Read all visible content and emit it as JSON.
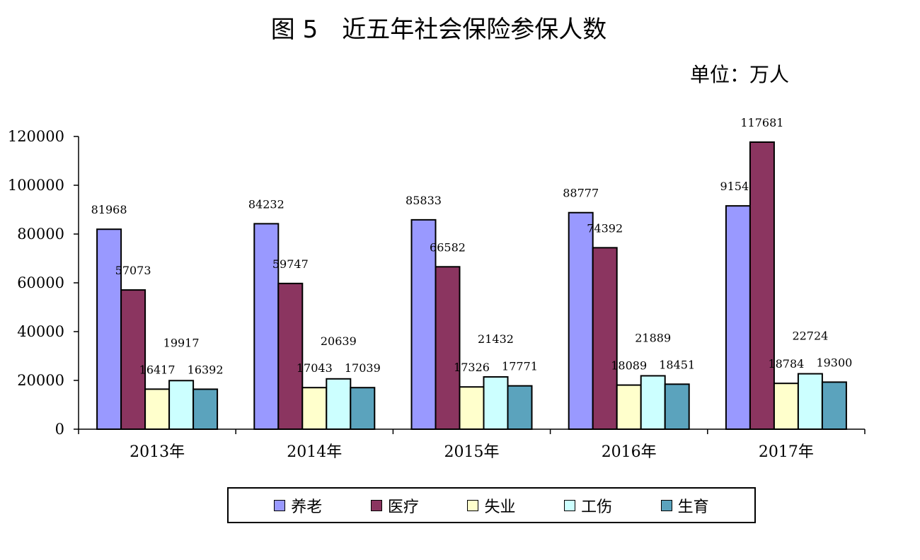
{
  "chart_data": {
    "type": "bar",
    "title": "图 5　近五年社会保险参保人数",
    "unit": "单位：万人",
    "categories": [
      "2013年",
      "2014年",
      "2015年",
      "2016年",
      "2017年"
    ],
    "series": [
      {
        "name": "养老",
        "color": "#9999ff",
        "values": [
          81968,
          84232,
          85833,
          88777,
          91548
        ]
      },
      {
        "name": "医疗",
        "color": "#8b3560",
        "values": [
          57073,
          59747,
          66582,
          74392,
          117681
        ]
      },
      {
        "name": "失业",
        "color": "#ffffcc",
        "values": [
          16417,
          17043,
          17326,
          18089,
          18784
        ]
      },
      {
        "name": "工伤",
        "color": "#ccffff",
        "values": [
          19917,
          20639,
          21432,
          21889,
          22724
        ]
      },
      {
        "name": "生育",
        "color": "#5ba3bd",
        "values": [
          16392,
          17039,
          17771,
          18451,
          19300
        ]
      }
    ],
    "yticks": [
      0,
      20000,
      40000,
      60000,
      80000,
      100000,
      120000
    ],
    "ylim": [
      0,
      120000
    ],
    "legend_position": "bottom",
    "grid": false
  }
}
